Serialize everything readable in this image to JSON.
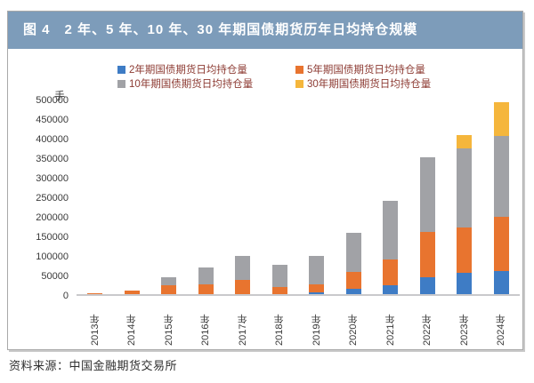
{
  "figure": {
    "title": "图 4　2 年、5 年、10 年、30 年期国债期货历年日均持仓规模",
    "source": "资料来源：中国金融期货交易所"
  },
  "colors": {
    "title_bar_bg": "#7d9cba",
    "title_text": "#ffffff",
    "legend_text": "#8c3a32",
    "axis_text": "#3a3a3a",
    "axis_line": "#c9c9cc",
    "series_blue": "#3e7cc5",
    "series_orange": "#e8742f",
    "series_gray": "#a1a2a6",
    "series_yellow": "#f5b63c"
  },
  "chart_data": {
    "type": "bar",
    "stacked": true,
    "grid": false,
    "legend_position": "top",
    "unit_label": "手",
    "ylim": [
      0,
      500000
    ],
    "ytick_step": 50000,
    "categories": [
      "2013年",
      "2014年",
      "2015年",
      "2016年",
      "2017年",
      "2018年",
      "2019年",
      "2020年",
      "2021年",
      "2022年",
      "2023年",
      "2024年"
    ],
    "series": [
      {
        "name": "2年期国债期货日均持仓量",
        "color": "#3e7cc5",
        "values": [
          0,
          0,
          0,
          0,
          0,
          0,
          5000,
          13000,
          23000,
          44000,
          54000,
          58000
        ]
      },
      {
        "name": "5年期国债期货日均持仓量",
        "color": "#e8742f",
        "values": [
          2000,
          8000,
          23000,
          24000,
          36000,
          18000,
          21000,
          44000,
          67000,
          115000,
          115000,
          138000
        ]
      },
      {
        "name": "10年期国债期货日均持仓量",
        "color": "#a1a2a6",
        "values": [
          0,
          0,
          21000,
          44000,
          62000,
          57000,
          72000,
          100000,
          149000,
          191000,
          202000,
          207000
        ]
      },
      {
        "name": "30年期国债期货日均持仓量",
        "color": "#f5b63c",
        "values": [
          0,
          0,
          0,
          0,
          0,
          0,
          0,
          0,
          0,
          0,
          33000,
          87000
        ]
      }
    ]
  }
}
